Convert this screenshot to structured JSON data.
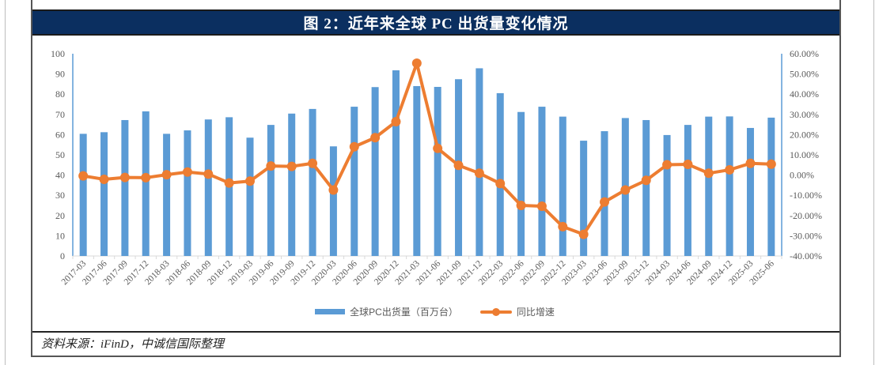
{
  "header": {
    "title": "图 2：近年来全球 PC 出货量变化情况"
  },
  "footer": {
    "source": "资料来源：iFinD，中诚信国际整理"
  },
  "legend": {
    "bar_label": "全球PC出货量（百万台）",
    "line_label": "同比增速"
  },
  "colors": {
    "bar": "#5b9bd5",
    "line": "#ed7d31",
    "title_bg": "#0b2f60"
  },
  "chart_data": {
    "type": "bar+line",
    "title": "图 2：近年来全球 PC 出货量变化情况",
    "xlabel": "",
    "ylabel_left": "全球PC出货量（百万台）",
    "ylabel_right": "同比增速",
    "ylim_left": [
      0,
      100
    ],
    "yticks_left": [
      0,
      10,
      20,
      30,
      40,
      50,
      60,
      70,
      80,
      90,
      100
    ],
    "ylim_right": [
      -40,
      60
    ],
    "yticks_right": [
      "-40.00%",
      "-30.00%",
      "-20.00%",
      "-10.00%",
      "0.00%",
      "10.00%",
      "20.00%",
      "30.00%",
      "40.00%",
      "50.00%",
      "60.00%"
    ],
    "grid": false,
    "legend_position": "bottom",
    "categories": [
      "2017-03",
      "2017-06",
      "2017-09",
      "2017-12",
      "2018-03",
      "2018-06",
      "2018-09",
      "2018-12",
      "2019-03",
      "2019-06",
      "2019-09",
      "2019-12",
      "2020-03",
      "2020-06",
      "2020-09",
      "2020-12",
      "2021-03",
      "2021-06",
      "2021-09",
      "2021-12",
      "2022-03",
      "2022-06",
      "2022-09",
      "2022-12",
      "2023-03",
      "2023-06",
      "2023-09",
      "2023-12",
      "2024-03",
      "2024-06",
      "2024-09",
      "2024-12",
      "2025-03",
      "2025-06"
    ],
    "series": [
      {
        "name": "全球PC出货量（百万台）",
        "type": "bar",
        "axis": "left",
        "values": [
          60.4,
          61.2,
          67.2,
          71.5,
          60.4,
          62.1,
          67.5,
          68.6,
          58.5,
          64.8,
          70.4,
          72.7,
          54.2,
          73.8,
          83.5,
          91.8,
          84.0,
          83.6,
          87.4,
          92.8,
          80.5,
          71.2,
          73.8,
          68.9,
          57.0,
          61.7,
          68.2,
          67.2,
          59.8,
          64.8,
          68.9,
          69.0,
          63.3,
          68.4
        ]
      },
      {
        "name": "同比增速",
        "type": "line",
        "axis": "right",
        "unit": "%",
        "values": [
          -0.4,
          -2.1,
          -1.2,
          -1.3,
          0.2,
          1.5,
          0.5,
          -3.9,
          -3.0,
          4.5,
          4.3,
          5.8,
          -7.4,
          14.0,
          18.5,
          26.4,
          55.3,
          13.2,
          4.8,
          0.9,
          -4.2,
          -15.0,
          -15.4,
          -25.5,
          -29.3,
          -13.3,
          -7.4,
          -2.6,
          5.1,
          5.3,
          0.9,
          2.6,
          5.8,
          5.4
        ]
      }
    ]
  }
}
